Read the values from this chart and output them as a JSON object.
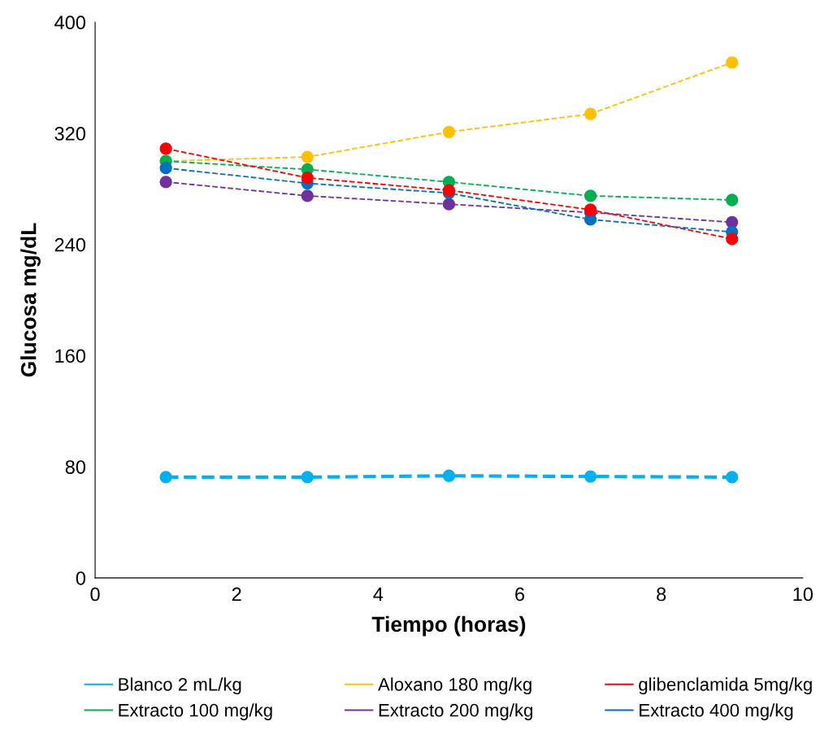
{
  "chart_data": {
    "type": "line",
    "xlabel": "Tiempo (horas)",
    "ylabel": "Glucosa mg/dL",
    "xlim": [
      0,
      10
    ],
    "xticks": [
      0,
      2,
      4,
      6,
      8,
      10
    ],
    "ylim": [
      0,
      400
    ],
    "yticks": [
      0,
      80,
      160,
      240,
      320,
      400
    ],
    "x": [
      1,
      3,
      5,
      7,
      9
    ],
    "grid": false,
    "legend": "bottom",
    "marker": "circle",
    "line_style": "dashed",
    "series": [
      {
        "name": "Blanco 2 mL/kg",
        "color": "#00b0f0",
        "values": [
          72.5,
          72.5,
          73.5,
          73,
          72.5
        ]
      },
      {
        "name": "Aloxano 180 mg/kg",
        "color": "#ffc000",
        "values": [
          300,
          303,
          321,
          334,
          371
        ]
      },
      {
        "name": "glibenclamida 5mg/kg",
        "color": "#ff0000",
        "values": [
          309,
          288,
          279,
          265,
          244
        ]
      },
      {
        "name": "Extracto 100 mg/kg",
        "color": "#00b050",
        "values": [
          300,
          294,
          285,
          275,
          272
        ]
      },
      {
        "name": "Extracto 200 mg/kg",
        "color": "#7030a0",
        "values": [
          285,
          275,
          269,
          263,
          256
        ]
      },
      {
        "name": "Extracto 400 mg/kg",
        "color": "#0070c0",
        "values": [
          295,
          284,
          277,
          258,
          249
        ]
      }
    ]
  }
}
